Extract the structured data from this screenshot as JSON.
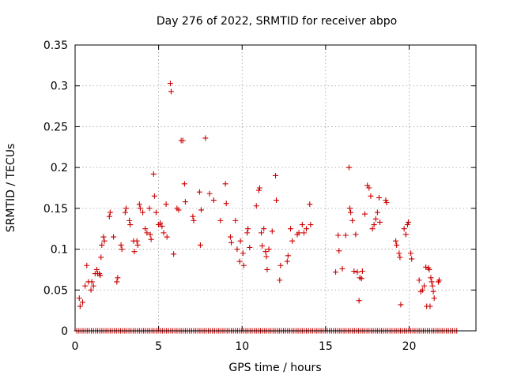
{
  "chart_data": {
    "type": "scatter",
    "title": "Day 276 of 2022, SRMTID for receiver abpo",
    "xlabel": "GPS time / hours",
    "ylabel": "SRMTID / TECUs",
    "xlim": [
      0,
      24
    ],
    "ylim": [
      0,
      0.35
    ],
    "x_ticks": [
      0,
      5,
      10,
      15,
      20
    ],
    "x_tick_labels": [
      "0",
      "5",
      "10",
      "15",
      "20"
    ],
    "y_ticks": [
      0,
      0.05,
      0.1,
      0.15,
      0.2,
      0.25,
      0.3,
      0.35
    ],
    "y_tick_labels": [
      "0",
      "0.05",
      "0.1",
      "0.15",
      "0.2",
      "0.25",
      "0.3",
      "0.35"
    ],
    "grid": true,
    "marker": "plus",
    "color": "#cc0000",
    "zero_row": {
      "y": 0,
      "x_start": 0.1,
      "x_end": 22.9,
      "step": 0.125
    },
    "series": [
      {
        "name": "SRMTID",
        "points": [
          [
            0.25,
            0.04
          ],
          [
            0.3,
            0.03
          ],
          [
            0.45,
            0.035
          ],
          [
            0.6,
            0.055
          ],
          [
            0.7,
            0.08
          ],
          [
            0.8,
            0.06
          ],
          [
            0.95,
            0.05
          ],
          [
            1.0,
            0.06
          ],
          [
            1.1,
            0.055
          ],
          [
            1.2,
            0.07
          ],
          [
            1.3,
            0.075
          ],
          [
            1.35,
            0.07
          ],
          [
            1.45,
            0.07
          ],
          [
            1.5,
            0.068
          ],
          [
            1.55,
            0.09
          ],
          [
            1.6,
            0.105
          ],
          [
            1.7,
            0.115
          ],
          [
            1.75,
            0.11
          ],
          [
            2.05,
            0.14
          ],
          [
            2.1,
            0.145
          ],
          [
            2.3,
            0.115
          ],
          [
            2.5,
            0.06
          ],
          [
            2.55,
            0.065
          ],
          [
            2.75,
            0.105
          ],
          [
            2.8,
            0.1
          ],
          [
            3.0,
            0.145
          ],
          [
            3.05,
            0.15
          ],
          [
            3.25,
            0.135
          ],
          [
            3.3,
            0.13
          ],
          [
            3.5,
            0.11
          ],
          [
            3.55,
            0.097
          ],
          [
            3.7,
            0.11
          ],
          [
            3.75,
            0.105
          ],
          [
            3.85,
            0.155
          ],
          [
            3.9,
            0.15
          ],
          [
            4.05,
            0.145
          ],
          [
            4.2,
            0.125
          ],
          [
            4.3,
            0.12
          ],
          [
            4.45,
            0.15
          ],
          [
            4.5,
            0.118
          ],
          [
            4.55,
            0.112
          ],
          [
            4.7,
            0.192
          ],
          [
            4.75,
            0.165
          ],
          [
            4.85,
            0.145
          ],
          [
            5.0,
            0.13
          ],
          [
            5.1,
            0.132
          ],
          [
            5.2,
            0.128
          ],
          [
            5.3,
            0.12
          ],
          [
            5.45,
            0.155
          ],
          [
            5.5,
            0.115
          ],
          [
            5.7,
            0.303
          ],
          [
            5.75,
            0.293
          ],
          [
            5.9,
            0.094
          ],
          [
            6.1,
            0.15
          ],
          [
            6.2,
            0.148
          ],
          [
            6.35,
            0.233
          ],
          [
            6.45,
            0.233
          ],
          [
            6.55,
            0.18
          ],
          [
            6.6,
            0.158
          ],
          [
            7.05,
            0.14
          ],
          [
            7.1,
            0.135
          ],
          [
            7.45,
            0.17
          ],
          [
            7.5,
            0.105
          ],
          [
            7.55,
            0.148
          ],
          [
            7.8,
            0.236
          ],
          [
            8.05,
            0.168
          ],
          [
            8.3,
            0.16
          ],
          [
            8.7,
            0.135
          ],
          [
            9.0,
            0.18
          ],
          [
            9.05,
            0.156
          ],
          [
            9.3,
            0.115
          ],
          [
            9.35,
            0.108
          ],
          [
            9.6,
            0.135
          ],
          [
            9.7,
            0.1
          ],
          [
            9.85,
            0.085
          ],
          [
            9.9,
            0.11
          ],
          [
            10.05,
            0.095
          ],
          [
            10.1,
            0.08
          ],
          [
            10.3,
            0.12
          ],
          [
            10.35,
            0.125
          ],
          [
            10.45,
            0.102
          ],
          [
            10.85,
            0.153
          ],
          [
            11.0,
            0.172
          ],
          [
            11.05,
            0.175
          ],
          [
            11.15,
            0.12
          ],
          [
            11.2,
            0.104
          ],
          [
            11.3,
            0.125
          ],
          [
            11.4,
            0.097
          ],
          [
            11.45,
            0.091
          ],
          [
            11.5,
            0.075
          ],
          [
            11.6,
            0.1
          ],
          [
            11.8,
            0.122
          ],
          [
            12.0,
            0.19
          ],
          [
            12.05,
            0.16
          ],
          [
            12.25,
            0.062
          ],
          [
            12.3,
            0.08
          ],
          [
            12.7,
            0.085
          ],
          [
            12.75,
            0.092
          ],
          [
            12.9,
            0.125
          ],
          [
            13.0,
            0.11
          ],
          [
            13.3,
            0.118
          ],
          [
            13.4,
            0.12
          ],
          [
            13.6,
            0.13
          ],
          [
            13.7,
            0.12
          ],
          [
            13.85,
            0.125
          ],
          [
            14.05,
            0.155
          ],
          [
            14.1,
            0.13
          ],
          [
            15.6,
            0.072
          ],
          [
            15.75,
            0.117
          ],
          [
            15.8,
            0.098
          ],
          [
            16.0,
            0.076
          ],
          [
            16.2,
            0.117
          ],
          [
            16.4,
            0.2
          ],
          [
            16.45,
            0.15
          ],
          [
            16.5,
            0.145
          ],
          [
            16.6,
            0.135
          ],
          [
            16.7,
            0.073
          ],
          [
            16.8,
            0.118
          ],
          [
            16.9,
            0.072
          ],
          [
            17.0,
            0.037
          ],
          [
            17.05,
            0.065
          ],
          [
            17.15,
            0.064
          ],
          [
            17.2,
            0.073
          ],
          [
            17.35,
            0.143
          ],
          [
            17.5,
            0.178
          ],
          [
            17.6,
            0.175
          ],
          [
            17.7,
            0.165
          ],
          [
            17.8,
            0.125
          ],
          [
            17.9,
            0.13
          ],
          [
            18.0,
            0.137
          ],
          [
            18.1,
            0.145
          ],
          [
            18.2,
            0.163
          ],
          [
            18.25,
            0.133
          ],
          [
            18.6,
            0.16
          ],
          [
            18.65,
            0.157
          ],
          [
            19.2,
            0.11
          ],
          [
            19.25,
            0.105
          ],
          [
            19.4,
            0.095
          ],
          [
            19.45,
            0.09
          ],
          [
            19.5,
            0.032
          ],
          [
            19.7,
            0.125
          ],
          [
            19.8,
            0.118
          ],
          [
            19.9,
            0.13
          ],
          [
            19.95,
            0.133
          ],
          [
            20.1,
            0.095
          ],
          [
            20.15,
            0.088
          ],
          [
            20.6,
            0.062
          ],
          [
            20.7,
            0.048
          ],
          [
            20.8,
            0.05
          ],
          [
            20.9,
            0.055
          ],
          [
            21.0,
            0.078
          ],
          [
            21.05,
            0.03
          ],
          [
            21.15,
            0.077
          ],
          [
            21.2,
            0.075
          ],
          [
            21.25,
            0.03
          ],
          [
            21.3,
            0.065
          ],
          [
            21.35,
            0.06
          ],
          [
            21.4,
            0.055
          ],
          [
            21.45,
            0.048
          ],
          [
            21.5,
            0.04
          ],
          [
            21.75,
            0.06
          ],
          [
            21.8,
            0.062
          ]
        ]
      }
    ]
  }
}
